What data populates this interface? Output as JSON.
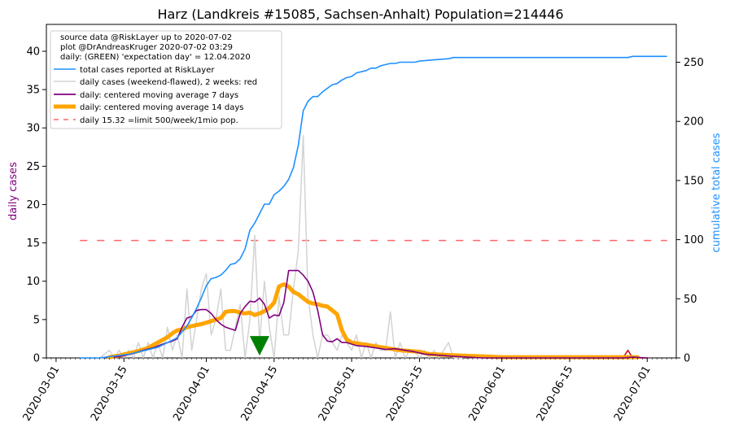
{
  "chart_data": {
    "type": "line",
    "title": "Harz (Landkreis #15085, Sachsen-Anhalt) Population=214446",
    "ylabel_left": "daily cases",
    "ylabel_right": "cumulative total cases",
    "ylim_left": [
      0,
      43.5
    ],
    "ylim_right": [
      0,
      282
    ],
    "left_ticks": [
      0,
      5,
      10,
      15,
      20,
      25,
      30,
      35,
      40
    ],
    "right_ticks": [
      0,
      50,
      100,
      150,
      200,
      250
    ],
    "x_range": [
      "2020-02-28",
      "2020-07-07"
    ],
    "x_ticks": [
      "2020-03-01",
      "2020-03-15",
      "2020-04-01",
      "2020-04-15",
      "2020-05-01",
      "2020-05-15",
      "2020-06-01",
      "2020-06-15",
      "2020-07-01"
    ],
    "legend_position": "upper-left",
    "info_lines": [
      "source data @RiskLayer up to 2020-07-02",
      "plot @DrAndreasKruger 2020-07-02 03:29",
      "daily: (GREEN) 'expectation day' = 12.04.2020"
    ],
    "colors": {
      "cumulative": "#1e90ff",
      "daily_raw": "#d3d3d3",
      "ma7": "#800080",
      "ma14": "#ffa500",
      "limit": "#ff6666",
      "marker": "#008000",
      "recent": "#cc0000",
      "left_axis_label": "#800080",
      "right_axis_label": "#1e90ff"
    },
    "series": [
      {
        "name": "total cases reported at RiskLayer",
        "axis": "right",
        "points": [
          [
            "2020-03-06",
            0
          ],
          [
            "2020-03-10",
            0
          ],
          [
            "2020-03-12",
            1
          ],
          [
            "2020-03-14",
            2
          ],
          [
            "2020-03-16",
            3
          ],
          [
            "2020-03-18",
            5
          ],
          [
            "2020-03-20",
            7
          ],
          [
            "2020-03-22",
            9
          ],
          [
            "2020-03-24",
            13
          ],
          [
            "2020-03-26",
            17
          ],
          [
            "2020-03-27",
            22
          ],
          [
            "2020-03-28",
            27
          ],
          [
            "2020-03-29",
            34
          ],
          [
            "2020-03-30",
            42
          ],
          [
            "2020-03-31",
            51
          ],
          [
            "2020-04-01",
            61
          ],
          [
            "2020-04-02",
            67
          ],
          [
            "2020-04-03",
            68
          ],
          [
            "2020-04-04",
            70
          ],
          [
            "2020-04-05",
            74
          ],
          [
            "2020-04-06",
            79
          ],
          [
            "2020-04-07",
            80
          ],
          [
            "2020-04-08",
            84
          ],
          [
            "2020-04-09",
            92
          ],
          [
            "2020-04-10",
            108
          ],
          [
            "2020-04-11",
            114
          ],
          [
            "2020-04-12",
            122
          ],
          [
            "2020-04-13",
            130
          ],
          [
            "2020-04-14",
            130
          ],
          [
            "2020-04-15",
            138
          ],
          [
            "2020-04-16",
            141
          ],
          [
            "2020-04-17",
            145
          ],
          [
            "2020-04-18",
            151
          ],
          [
            "2020-04-19",
            161
          ],
          [
            "2020-04-20",
            180
          ],
          [
            "2020-04-21",
            209
          ],
          [
            "2020-04-22",
            217
          ],
          [
            "2020-04-23",
            221
          ],
          [
            "2020-04-24",
            221
          ],
          [
            "2020-04-25",
            225
          ],
          [
            "2020-04-26",
            228
          ],
          [
            "2020-04-27",
            231
          ],
          [
            "2020-04-28",
            232
          ],
          [
            "2020-04-29",
            235
          ],
          [
            "2020-04-30",
            237
          ],
          [
            "2020-05-01",
            238
          ],
          [
            "2020-05-02",
            241
          ],
          [
            "2020-05-03",
            242
          ],
          [
            "2020-05-04",
            243
          ],
          [
            "2020-05-05",
            245
          ],
          [
            "2020-05-06",
            245
          ],
          [
            "2020-05-07",
            247
          ],
          [
            "2020-05-08",
            248
          ],
          [
            "2020-05-09",
            249
          ],
          [
            "2020-05-10",
            249
          ],
          [
            "2020-05-11",
            250
          ],
          [
            "2020-05-12",
            250
          ],
          [
            "2020-05-13",
            250
          ],
          [
            "2020-05-14",
            250
          ],
          [
            "2020-05-15",
            251
          ],
          [
            "2020-05-18",
            252
          ],
          [
            "2020-05-21",
            253
          ],
          [
            "2020-05-22",
            254
          ],
          [
            "2020-06-01",
            254
          ],
          [
            "2020-06-27",
            254
          ],
          [
            "2020-06-28",
            255
          ],
          [
            "2020-07-05",
            255
          ]
        ]
      },
      {
        "name": "daily cases (weekend-flawed), 2 weeks: red",
        "axis": "left",
        "points": [
          [
            "2020-03-06",
            0
          ],
          [
            "2020-03-10",
            0
          ],
          [
            "2020-03-12",
            1
          ],
          [
            "2020-03-13",
            0
          ],
          [
            "2020-03-14",
            1
          ],
          [
            "2020-03-15",
            0
          ],
          [
            "2020-03-16",
            1
          ],
          [
            "2020-03-17",
            0
          ],
          [
            "2020-03-18",
            2
          ],
          [
            "2020-03-19",
            0
          ],
          [
            "2020-03-20",
            2
          ],
          [
            "2020-03-21",
            0
          ],
          [
            "2020-03-22",
            2
          ],
          [
            "2020-03-23",
            0
          ],
          [
            "2020-03-24",
            4
          ],
          [
            "2020-03-25",
            1
          ],
          [
            "2020-03-26",
            3
          ],
          [
            "2020-03-27",
            0
          ],
          [
            "2020-03-28",
            9
          ],
          [
            "2020-03-29",
            1
          ],
          [
            "2020-03-30",
            5
          ],
          [
            "2020-03-31",
            9
          ],
          [
            "2020-04-01",
            11
          ],
          [
            "2020-04-02",
            3
          ],
          [
            "2020-04-03",
            5
          ],
          [
            "2020-04-04",
            9
          ],
          [
            "2020-04-05",
            1
          ],
          [
            "2020-04-06",
            1
          ],
          [
            "2020-04-07",
            4
          ],
          [
            "2020-04-08",
            7
          ],
          [
            "2020-04-09",
            0
          ],
          [
            "2020-04-10",
            5
          ],
          [
            "2020-04-11",
            16
          ],
          [
            "2020-04-12",
            2
          ],
          [
            "2020-04-13",
            10
          ],
          [
            "2020-04-14",
            4
          ],
          [
            "2020-04-15",
            0
          ],
          [
            "2020-04-16",
            8
          ],
          [
            "2020-04-17",
            3
          ],
          [
            "2020-04-18",
            3
          ],
          [
            "2020-04-19",
            9
          ],
          [
            "2020-04-20",
            14
          ],
          [
            "2020-04-21",
            29
          ],
          [
            "2020-04-22",
            8
          ],
          [
            "2020-04-23",
            3
          ],
          [
            "2020-04-24",
            0
          ],
          [
            "2020-04-25",
            3
          ],
          [
            "2020-04-26",
            3
          ],
          [
            "2020-04-27",
            2
          ],
          [
            "2020-04-28",
            1
          ],
          [
            "2020-04-29",
            3
          ],
          [
            "2020-04-30",
            2
          ],
          [
            "2020-05-01",
            1
          ],
          [
            "2020-05-02",
            3
          ],
          [
            "2020-05-03",
            0
          ],
          [
            "2020-05-04",
            2
          ],
          [
            "2020-05-05",
            0
          ],
          [
            "2020-05-06",
            2
          ],
          [
            "2020-05-07",
            1
          ],
          [
            "2020-05-08",
            1
          ],
          [
            "2020-05-09",
            6
          ],
          [
            "2020-05-10",
            0
          ],
          [
            "2020-05-11",
            2
          ],
          [
            "2020-05-12",
            0
          ],
          [
            "2020-05-13",
            1
          ],
          [
            "2020-05-14",
            1
          ],
          [
            "2020-05-15",
            0
          ],
          [
            "2020-05-16",
            1
          ],
          [
            "2020-05-17",
            0
          ],
          [
            "2020-05-18",
            1
          ],
          [
            "2020-05-19",
            0
          ],
          [
            "2020-05-20",
            1
          ],
          [
            "2020-05-21",
            2
          ],
          [
            "2020-05-22",
            0
          ],
          [
            "2020-05-24",
            0
          ]
        ]
      },
      {
        "name": "daily: centered moving average 7 days",
        "axis": "left",
        "points": [
          [
            "2020-03-13",
            0.1
          ],
          [
            "2020-03-15",
            0.3
          ],
          [
            "2020-03-17",
            0.6
          ],
          [
            "2020-03-19",
            1.0
          ],
          [
            "2020-03-21",
            1.3
          ],
          [
            "2020-03-23",
            1.8
          ],
          [
            "2020-03-25",
            2.2
          ],
          [
            "2020-03-26",
            2.5
          ],
          [
            "2020-03-27",
            4.0
          ],
          [
            "2020-03-28",
            5.2
          ],
          [
            "2020-03-29",
            5.4
          ],
          [
            "2020-03-30",
            6.2
          ],
          [
            "2020-03-31",
            6.3
          ],
          [
            "2020-04-01",
            6.3
          ],
          [
            "2020-04-02",
            5.8
          ],
          [
            "2020-04-03",
            5.0
          ],
          [
            "2020-04-04",
            4.4
          ],
          [
            "2020-04-05",
            4.0
          ],
          [
            "2020-04-06",
            3.8
          ],
          [
            "2020-04-07",
            3.6
          ],
          [
            "2020-04-08",
            5.8
          ],
          [
            "2020-04-09",
            6.7
          ],
          [
            "2020-04-10",
            7.4
          ],
          [
            "2020-04-11",
            7.3
          ],
          [
            "2020-04-12",
            7.8
          ],
          [
            "2020-04-13",
            7.0
          ],
          [
            "2020-04-14",
            5.2
          ],
          [
            "2020-04-15",
            5.6
          ],
          [
            "2020-04-16",
            5.5
          ],
          [
            "2020-04-17",
            7.2
          ],
          [
            "2020-04-18",
            11.4
          ],
          [
            "2020-04-19",
            11.4
          ],
          [
            "2020-04-20",
            11.4
          ],
          [
            "2020-04-21",
            10.8
          ],
          [
            "2020-04-22",
            10.0
          ],
          [
            "2020-04-23",
            8.6
          ],
          [
            "2020-04-24",
            6.2
          ],
          [
            "2020-04-25",
            3.0
          ],
          [
            "2020-04-26",
            2.2
          ],
          [
            "2020-04-27",
            2.1
          ],
          [
            "2020-04-28",
            2.5
          ],
          [
            "2020-04-29",
            2.0
          ],
          [
            "2020-04-30",
            2.0
          ],
          [
            "2020-05-02",
            1.6
          ],
          [
            "2020-05-04",
            1.5
          ],
          [
            "2020-05-06",
            1.3
          ],
          [
            "2020-05-08",
            1.1
          ],
          [
            "2020-05-10",
            1.2
          ],
          [
            "2020-05-12",
            1.0
          ],
          [
            "2020-05-14",
            0.8
          ],
          [
            "2020-05-16",
            0.5
          ],
          [
            "2020-05-18",
            0.4
          ],
          [
            "2020-05-22",
            0.2
          ],
          [
            "2020-05-28",
            0.0
          ],
          [
            "2020-06-26",
            0.0
          ],
          [
            "2020-06-28",
            0.1
          ],
          [
            "2020-07-01",
            0.0
          ]
        ]
      },
      {
        "name": "daily: centered moving average 14 days",
        "axis": "left",
        "points": [
          [
            "2020-03-12",
            0.1
          ],
          [
            "2020-03-14",
            0.3
          ],
          [
            "2020-03-16",
            0.6
          ],
          [
            "2020-03-18",
            0.9
          ],
          [
            "2020-03-20",
            1.3
          ],
          [
            "2020-03-22",
            2.0
          ],
          [
            "2020-03-24",
            2.7
          ],
          [
            "2020-03-25",
            3.2
          ],
          [
            "2020-03-26",
            3.6
          ],
          [
            "2020-03-27",
            3.7
          ],
          [
            "2020-03-28",
            4.0
          ],
          [
            "2020-03-30",
            4.3
          ],
          [
            "2020-03-31",
            4.4
          ],
          [
            "2020-04-01",
            4.6
          ],
          [
            "2020-04-02",
            4.8
          ],
          [
            "2020-04-03",
            5.0
          ],
          [
            "2020-04-04",
            5.2
          ],
          [
            "2020-04-05",
            6.0
          ],
          [
            "2020-04-06",
            6.1
          ],
          [
            "2020-04-07",
            6.1
          ],
          [
            "2020-04-08",
            5.9
          ],
          [
            "2020-04-09",
            5.8
          ],
          [
            "2020-04-10",
            5.9
          ],
          [
            "2020-04-11",
            5.6
          ],
          [
            "2020-04-12",
            5.8
          ],
          [
            "2020-04-13",
            6.1
          ],
          [
            "2020-04-14",
            6.5
          ],
          [
            "2020-04-15",
            7.2
          ],
          [
            "2020-04-16",
            9.3
          ],
          [
            "2020-04-17",
            9.6
          ],
          [
            "2020-04-18",
            9.3
          ],
          [
            "2020-04-19",
            8.6
          ],
          [
            "2020-04-20",
            8.3
          ],
          [
            "2020-04-21",
            7.8
          ],
          [
            "2020-04-22",
            7.3
          ],
          [
            "2020-04-23",
            7.1
          ],
          [
            "2020-04-24",
            7.0
          ],
          [
            "2020-04-25",
            6.8
          ],
          [
            "2020-04-26",
            6.7
          ],
          [
            "2020-04-27",
            6.2
          ],
          [
            "2020-04-28",
            5.7
          ],
          [
            "2020-04-29",
            3.6
          ],
          [
            "2020-04-30",
            2.4
          ],
          [
            "2020-05-01",
            2.0
          ],
          [
            "2020-05-03",
            1.8
          ],
          [
            "2020-05-05",
            1.6
          ],
          [
            "2020-05-07",
            1.4
          ],
          [
            "2020-05-09",
            1.2
          ],
          [
            "2020-05-11",
            1.0
          ],
          [
            "2020-05-13",
            0.9
          ],
          [
            "2020-05-15",
            0.8
          ],
          [
            "2020-05-17",
            0.5
          ],
          [
            "2020-05-20",
            0.4
          ],
          [
            "2020-05-24",
            0.3
          ],
          [
            "2020-05-28",
            0.2
          ],
          [
            "2020-06-01",
            0.1
          ],
          [
            "2020-06-27",
            0.1
          ],
          [
            "2020-06-29",
            0.1
          ]
        ]
      },
      {
        "name": "daily 15.32 =limit 500/week/1mio pop.",
        "axis": "left",
        "dashed": true,
        "points": [
          [
            "2020-03-06",
            15.32
          ],
          [
            "2020-07-05",
            15.32
          ]
        ]
      }
    ],
    "red_recent": {
      "axis": "left",
      "points": [
        [
          "2020-06-24",
          0
        ],
        [
          "2020-06-26",
          0
        ],
        [
          "2020-06-27",
          1
        ],
        [
          "2020-06-28",
          0
        ],
        [
          "2020-07-01",
          0
        ]
      ]
    },
    "marker": {
      "date": "2020-04-12",
      "value": 0.3,
      "shape": "triangle-down"
    }
  }
}
